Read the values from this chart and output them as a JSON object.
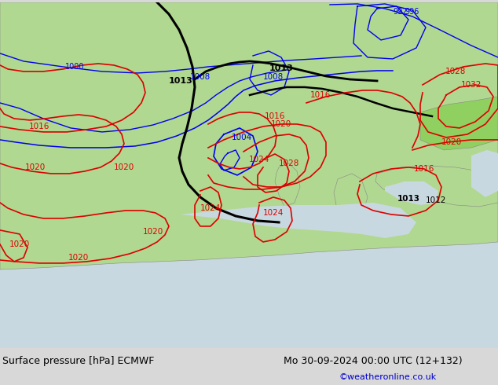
{
  "title_left": "Surface pressure [hPa] ECMWF",
  "title_right": "Mo 30-09-2024 00:00 UTC (12+132)",
  "credit": "©weatheronline.co.uk",
  "bg_land_green": "#b0d890",
  "bg_land_bright": "#90d060",
  "bg_sea": "#c8d8e0",
  "bg_gray_land": "#b8b8b8",
  "contour_blue": "#0000ee",
  "contour_red": "#dd0000",
  "contour_black": "#000000",
  "footer_fontsize": 9,
  "credit_color": "#0000cc",
  "fig_bg": "#d8d8d8",
  "border_color": "#888888"
}
